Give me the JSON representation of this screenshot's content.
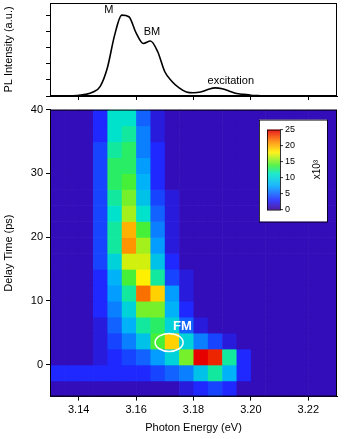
{
  "chart_data": [
    {
      "type": "line",
      "y_label": "PL Intensity (a.u.)",
      "x": [
        3.13,
        3.1325,
        3.135,
        3.1375,
        3.14,
        3.1425,
        3.145,
        3.1475,
        3.15,
        3.1525,
        3.155,
        3.1575,
        3.16,
        3.1625,
        3.165,
        3.1675,
        3.17,
        3.1725,
        3.175,
        3.1775,
        3.18,
        3.1825,
        3.185,
        3.1875,
        3.19,
        3.1925,
        3.195,
        3.1975,
        3.2,
        3.2025,
        3.205,
        3.2075,
        3.21,
        3.2125,
        3.215,
        3.2175,
        3.22,
        3.2225,
        3.225,
        3.2275,
        3.23
      ],
      "values": [
        0,
        0,
        0,
        0,
        0.01,
        0.02,
        0.05,
        0.12,
        0.35,
        0.75,
        1.0,
        0.98,
        0.78,
        0.65,
        0.68,
        0.55,
        0.3,
        0.18,
        0.1,
        0.05,
        0.04,
        0.05,
        0.08,
        0.1,
        0.09,
        0.06,
        0.03,
        0.02,
        0.01,
        0.005,
        0,
        0,
        0,
        0,
        0,
        0,
        0,
        0,
        0,
        0,
        0
      ],
      "color": "#000000",
      "xlim": [
        3.13,
        3.23
      ],
      "xticks": [
        3.14,
        3.16,
        3.18,
        {
          "value": 3.2,
          "label": "3.20"
        },
        3.22
      ],
      "ylim": [
        0,
        1.15
      ],
      "yticks": [
        0,
        0.2,
        0.4,
        0.6,
        0.8,
        1.0
      ],
      "tick_labels": false,
      "grid": false,
      "annotations": [
        {
          "text": "M",
          "x": 3.1505,
          "y": 1.0
        },
        {
          "text": "BM",
          "x": 3.1655,
          "y": 0.72
        },
        {
          "text": "excitation",
          "x": 3.193,
          "y": 0.12
        }
      ]
    },
    {
      "type": "heatmap",
      "x_label": "Photon Energy (eV)",
      "y_label": "Delay Time (ps)",
      "x_bins": [
        3.13,
        3.135,
        3.14,
        3.145,
        3.15,
        3.155,
        3.16,
        3.165,
        3.17,
        3.175,
        3.18,
        3.185,
        3.19,
        3.195,
        3.2,
        3.205,
        3.21,
        3.215,
        3.22,
        3.225,
        3.23
      ],
      "y_bins": [
        -5,
        -2.5,
        0,
        2.5,
        5,
        7.5,
        10,
        12.5,
        15,
        17.5,
        20,
        22.5,
        25,
        27.5,
        30,
        32.5,
        35,
        37.5,
        40
      ],
      "cells": [
        [
          1,
          1,
          1,
          1,
          1,
          1,
          1,
          1,
          1,
          2,
          3,
          4,
          3,
          1,
          1,
          1,
          1,
          1,
          1,
          1
        ],
        [
          3,
          3,
          3,
          3,
          3,
          3,
          3,
          4,
          5,
          6,
          9,
          12,
          8,
          3,
          1,
          1,
          1,
          1,
          1,
          1
        ],
        [
          1,
          1,
          1,
          2,
          3,
          4,
          5,
          7,
          10,
          15,
          25,
          24,
          12,
          3,
          1,
          1,
          1,
          1,
          1,
          1
        ],
        [
          1,
          1,
          1,
          2,
          4,
          6,
          9,
          14,
          19,
          10,
          6,
          4,
          2,
          1,
          1,
          1,
          1,
          1,
          1,
          1
        ],
        [
          1,
          1,
          1,
          2,
          5,
          8,
          12,
          13,
          10,
          5,
          2,
          1,
          1,
          1,
          1,
          1,
          1,
          1,
          1,
          1
        ],
        [
          1,
          1,
          1,
          3,
          6,
          10,
          15,
          15,
          8,
          3,
          1,
          1,
          1,
          1,
          1,
          1,
          1,
          1,
          1,
          1
        ],
        [
          1,
          1,
          1,
          3,
          7,
          12,
          22,
          19,
          7,
          2,
          1,
          1,
          1,
          1,
          1,
          1,
          1,
          1,
          1,
          1
        ],
        [
          1,
          1,
          1,
          3,
          8,
          14,
          18,
          12,
          4,
          2,
          1,
          1,
          1,
          1,
          1,
          1,
          1,
          1,
          1,
          1
        ],
        [
          1,
          1,
          1,
          4,
          10,
          17,
          17,
          9,
          3,
          1,
          1,
          1,
          1,
          1,
          1,
          1,
          1,
          1,
          1,
          1
        ],
        [
          1,
          1,
          1,
          4,
          12,
          21,
          16,
          7,
          2,
          1,
          1,
          1,
          1,
          1,
          1,
          1,
          1,
          1,
          1,
          1
        ],
        [
          1,
          1,
          1,
          4,
          12,
          20,
          14,
          6,
          2,
          1,
          1,
          1,
          1,
          1,
          1,
          1,
          1,
          1,
          1,
          1
        ],
        [
          1,
          1,
          1,
          4,
          11,
          16,
          11,
          5,
          2,
          1,
          1,
          1,
          1,
          1,
          1,
          1,
          1,
          1,
          1,
          1
        ],
        [
          1,
          1,
          1,
          4,
          12,
          15,
          9,
          4,
          2,
          1,
          1,
          1,
          1,
          1,
          1,
          1,
          1,
          1,
          1,
          1
        ],
        [
          1,
          1,
          1,
          4,
          13,
          14,
          8,
          3,
          1,
          1,
          1,
          1,
          1,
          1,
          1,
          1,
          1,
          1,
          1,
          1
        ],
        [
          1,
          1,
          1,
          4,
          13,
          13,
          7,
          3,
          1,
          1,
          1,
          1,
          1,
          1,
          1,
          1,
          1,
          1,
          1,
          1
        ],
        [
          1,
          1,
          1,
          4,
          12,
          13,
          6,
          3,
          1,
          1,
          1,
          1,
          1,
          1,
          1,
          1,
          1,
          1,
          1,
          1
        ],
        [
          1,
          1,
          1,
          3,
          11,
          12,
          6,
          2,
          1,
          1,
          1,
          1,
          1,
          1,
          1,
          1,
          1,
          1,
          1,
          1
        ],
        [
          1,
          1,
          1,
          3,
          11,
          11,
          5,
          2,
          1,
          1,
          1,
          1,
          1,
          1,
          1,
          1,
          1,
          1,
          1,
          1
        ]
      ],
      "xlim": [
        3.13,
        3.23
      ],
      "xticks": [
        3.14,
        3.16,
        3.18,
        {
          "value": 3.2,
          "label": "3.20"
        },
        3.22
      ],
      "ylim": [
        -5,
        40
      ],
      "yticks": [
        0,
        10,
        20,
        30,
        40
      ],
      "grid": false,
      "colorbar": {
        "range": [
          0,
          25
        ],
        "ticks": [
          0,
          5,
          10,
          15,
          20,
          25
        ],
        "label": "x10³"
      },
      "annotations": [
        {
          "text": "FM",
          "x": 3.1715,
          "y": 3.5
        }
      ]
    }
  ]
}
